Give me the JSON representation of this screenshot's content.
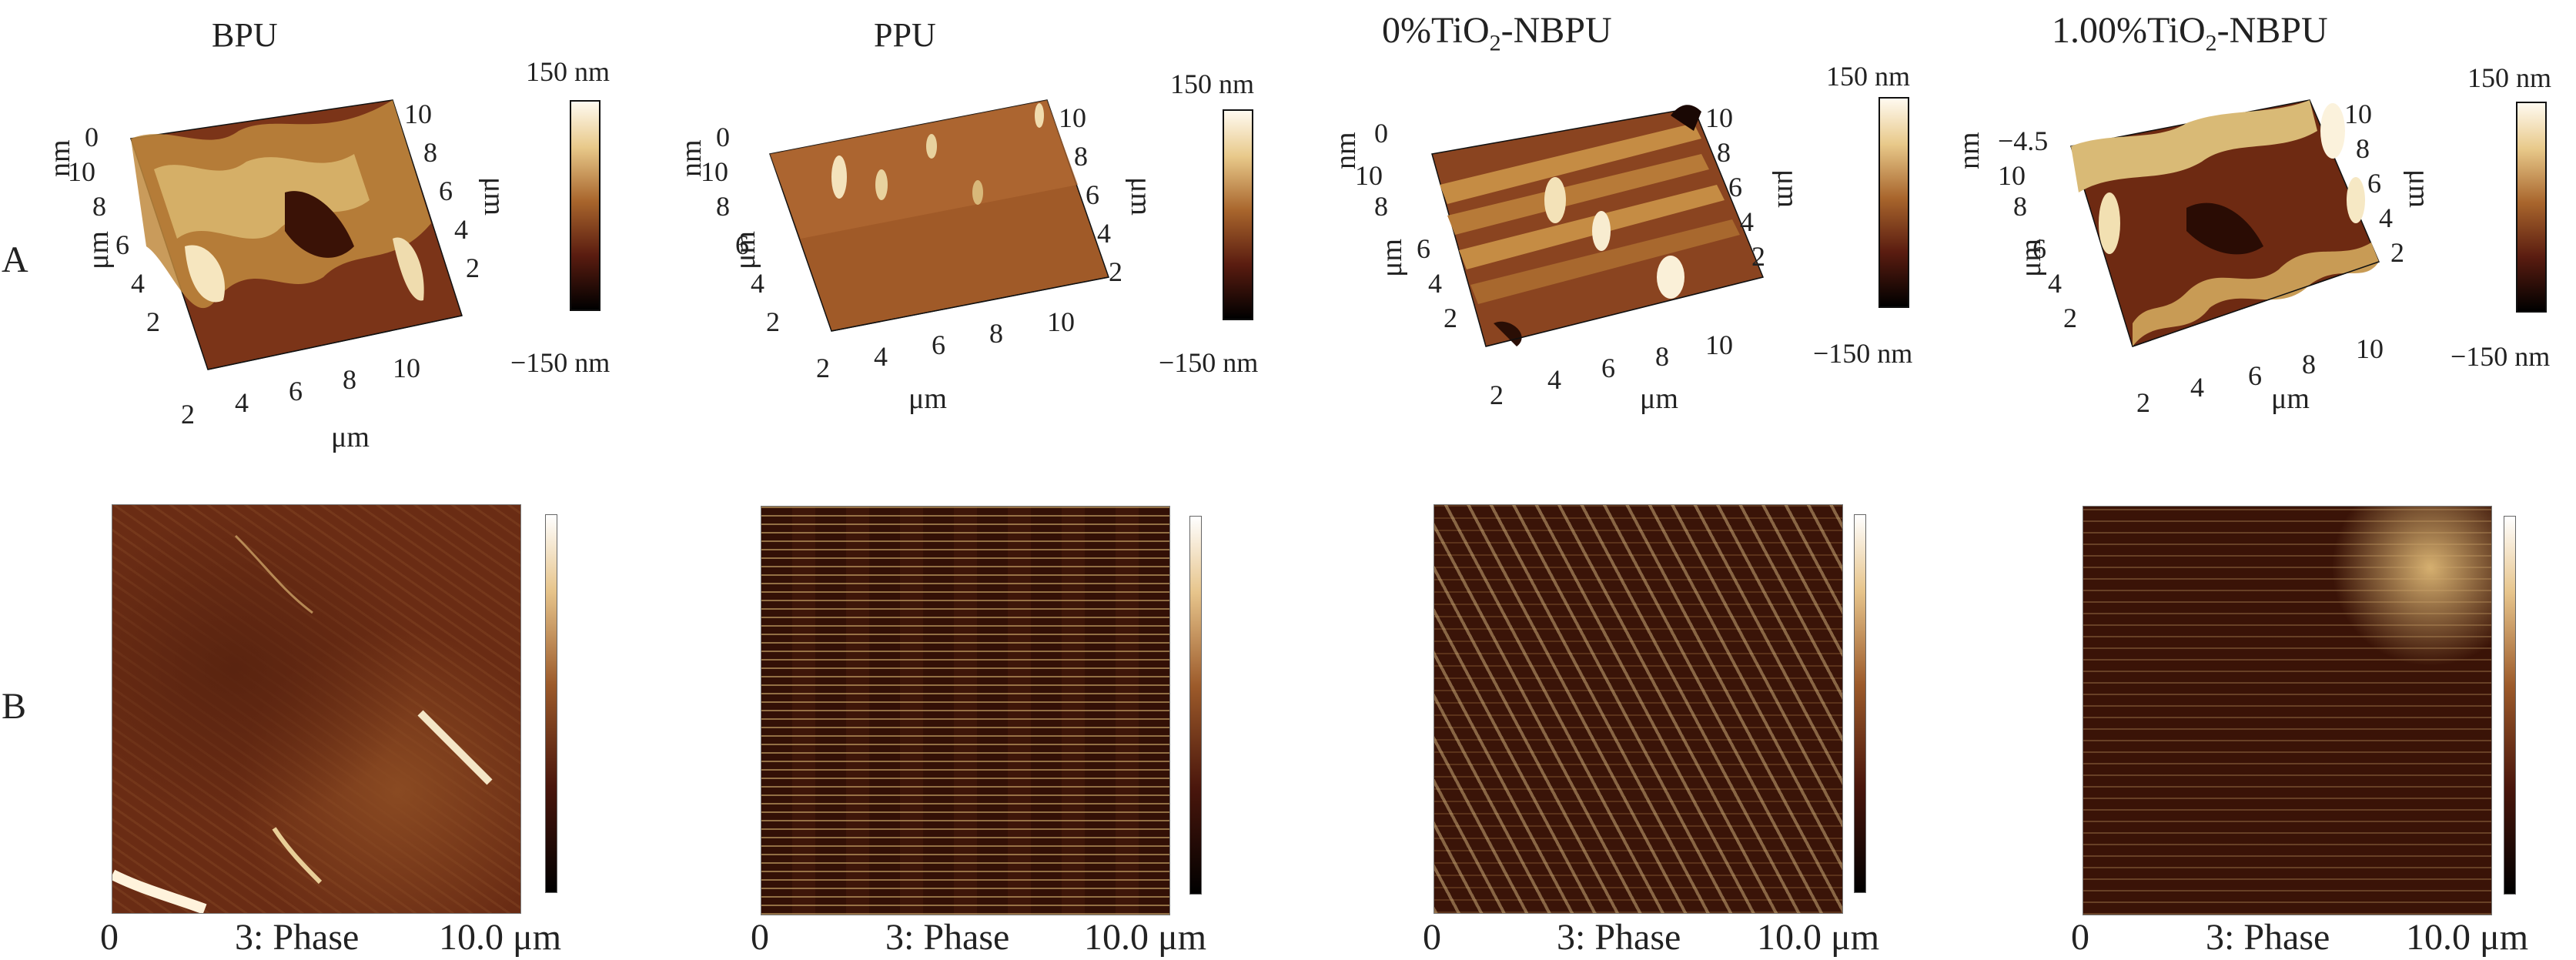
{
  "rows": {
    "a": "A",
    "b": "B"
  },
  "panels": [
    {
      "title": "BPU",
      "title_prefix": "",
      "title_sub": "",
      "title_suffix": "",
      "z0": "0"
    },
    {
      "title": "PPU",
      "title_prefix": "",
      "title_sub": "",
      "title_suffix": "",
      "z0": "0"
    },
    {
      "title": "",
      "title_prefix": "0%TiO",
      "title_sub": "2",
      "title_suffix": "-NBPU",
      "z0": "0"
    },
    {
      "title": "",
      "title_prefix": "1.00%TiO",
      "title_sub": "2",
      "title_suffix": "-NBPU",
      "z0": "−4.5"
    }
  ],
  "height_scale": {
    "max": "150 nm",
    "min": "−150 nm"
  },
  "axis": {
    "nm": "nm",
    "um": "μm",
    "ticks_y": [
      "10",
      "8",
      "6",
      "4",
      "2"
    ],
    "ticks_x": [
      "2",
      "4",
      "6",
      "8",
      "10"
    ],
    "ticks_r": [
      "10",
      "8",
      "6",
      "4",
      "2"
    ]
  },
  "phase_label": {
    "start": "0",
    "mid": "3: Phase",
    "end": "10.0 μm"
  },
  "colors": {
    "dark": "#3b1509",
    "mid": "#6b2a14",
    "light": "#d9b46a",
    "highlight": "#fff4dc"
  }
}
